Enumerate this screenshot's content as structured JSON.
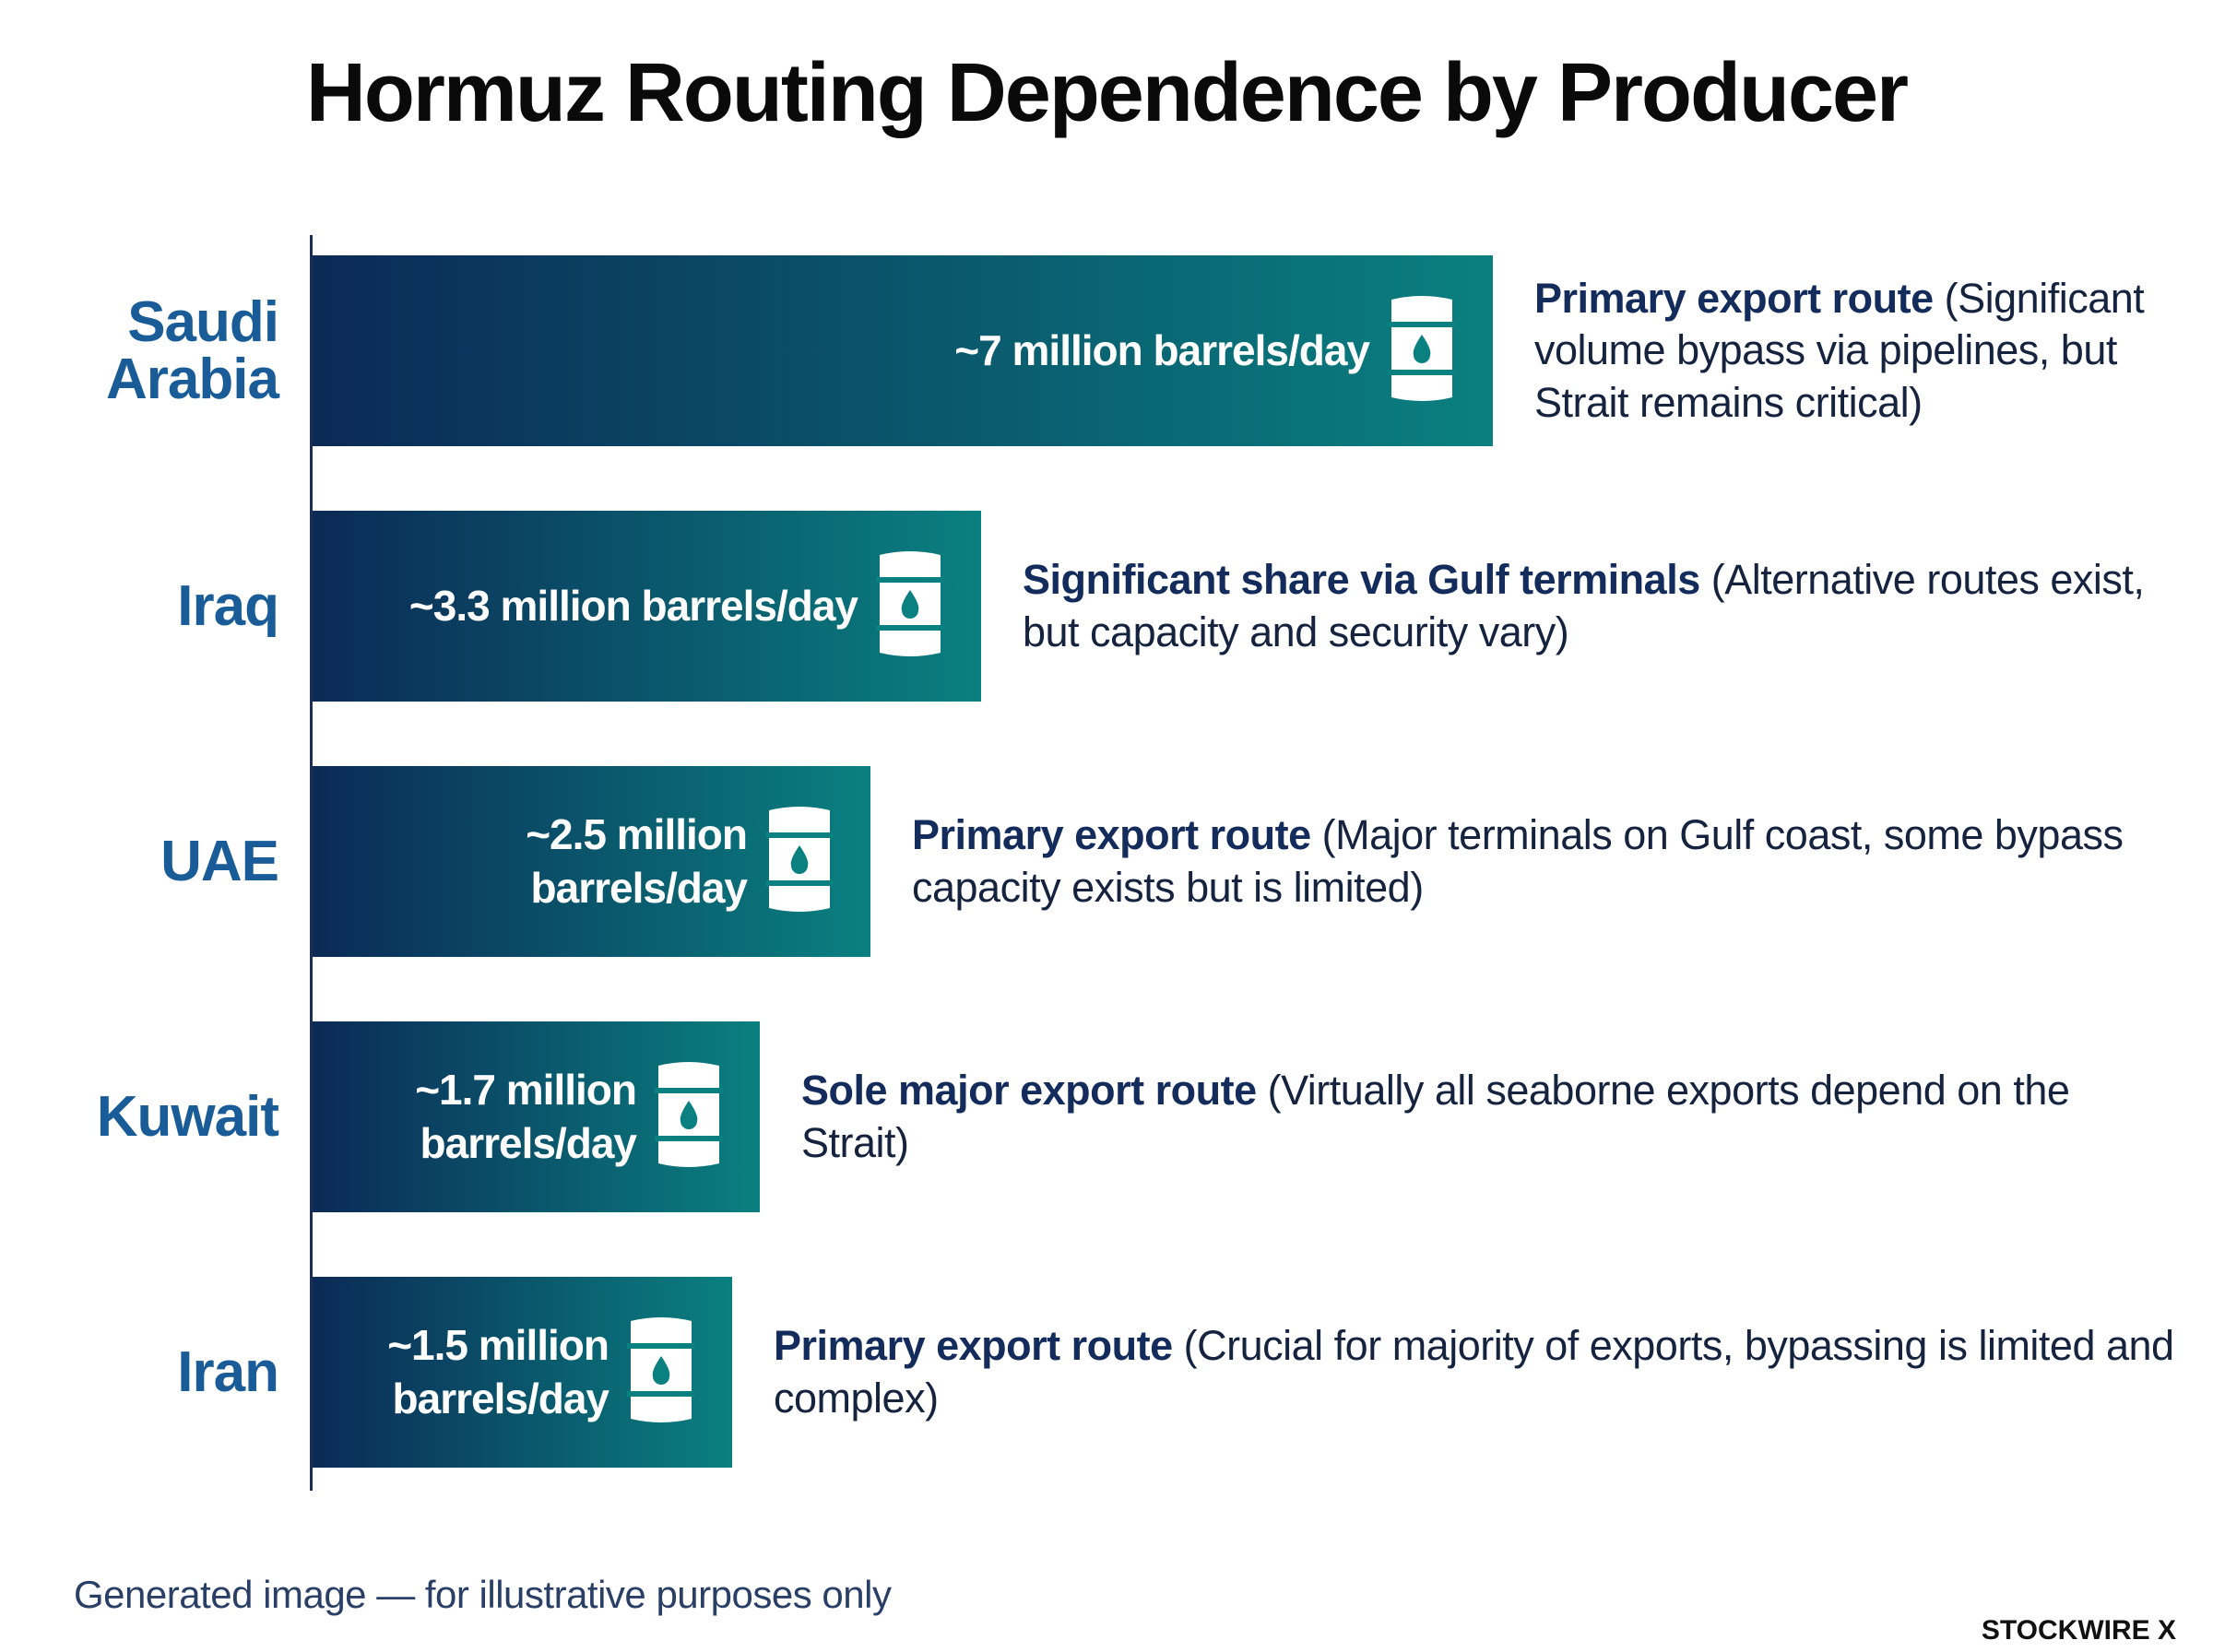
{
  "chart_data": {
    "type": "bar",
    "orientation": "horizontal",
    "title": "Hormuz Routing Dependence by Producer",
    "categories": [
      "Saudi Arabia",
      "Iraq",
      "UAE",
      "Kuwait",
      "Iran"
    ],
    "values": [
      7,
      3.3,
      2.5,
      1.7,
      1.5
    ],
    "value_labels": [
      "~7 million barrels/day",
      "~3.3 million barrels/day",
      "~2.5 million barrels/day",
      "~1.7 million barrels/day",
      "~1.5 million barrels/day"
    ],
    "annotations": [
      {
        "head": "Primary export route",
        "detail": "(Significant volume bypass via pipelines, but Strait remains critical)"
      },
      {
        "head": "Significant share via Gulf terminals",
        "detail": "(Alternative routes exist, but capacity and security vary)"
      },
      {
        "head": "Primary export route",
        "detail": "(Major terminals on Gulf coast, some bypass capacity exists but is limited)"
      },
      {
        "head": "Sole major export route",
        "detail": "(Virtually all seaborne exports depend on the Strait)"
      },
      {
        "head": "Primary export route",
        "detail": "(Crucial for majority of exports, bypassing is limited and complex)"
      }
    ],
    "color_start": "#0b2a56",
    "color_end": "#0a8080",
    "footnote": "Generated image — for illustrative purposes only",
    "brand": "STOCKWIRE X"
  }
}
